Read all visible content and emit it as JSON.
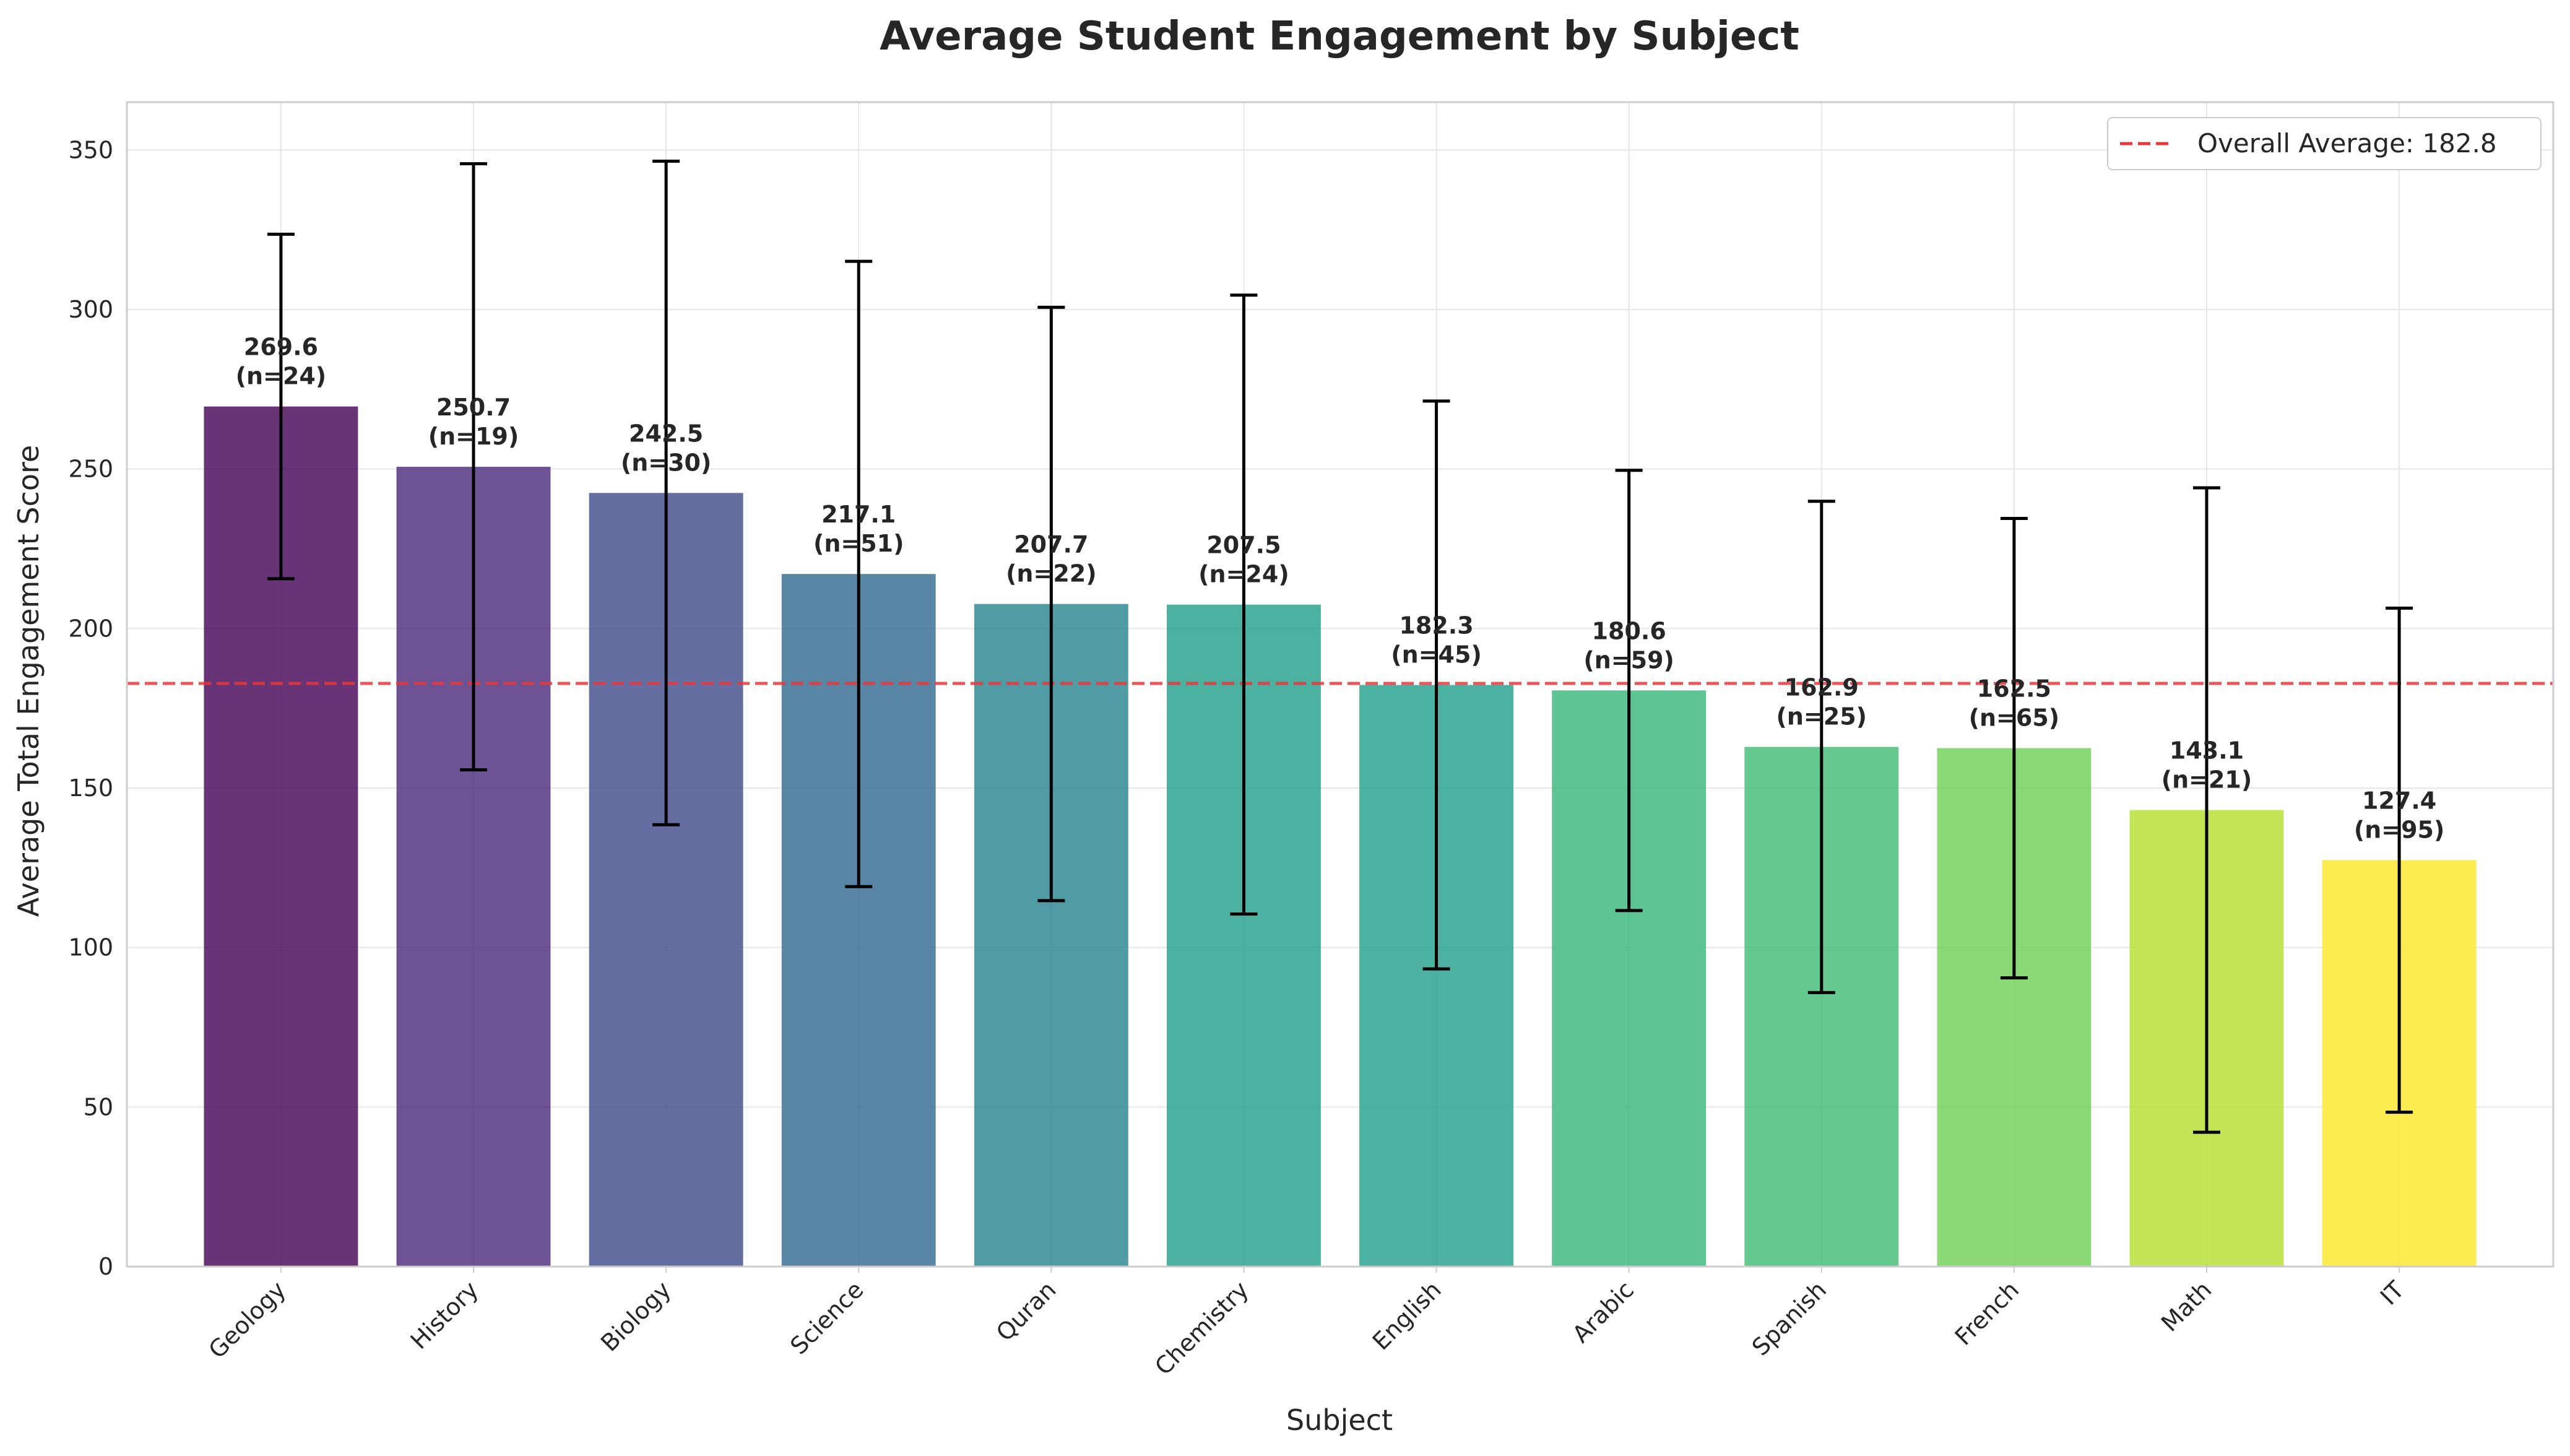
{
  "chart_data": {
    "type": "bar",
    "title": "Average Student Engagement by Subject",
    "xlabel": "Subject",
    "ylabel": "Average Total Engagement Score",
    "ylim": [
      0,
      365
    ],
    "yticks": [
      0,
      50,
      100,
      150,
      200,
      250,
      300,
      350
    ],
    "grid": true,
    "legend_position": "top-right",
    "categories": [
      "Geology",
      "History",
      "Biology",
      "Science",
      "Quran",
      "Chemistry",
      "English",
      "Arabic",
      "Spanish",
      "French",
      "Math",
      "IT"
    ],
    "values": [
      269.6,
      250.7,
      242.5,
      217.1,
      207.7,
      207.5,
      182.3,
      180.6,
      162.9,
      162.5,
      143.1,
      127.4
    ],
    "errors": [
      54,
      95,
      104,
      98,
      93,
      97,
      89,
      69,
      77,
      72,
      101,
      79
    ],
    "counts": [
      24,
      19,
      30,
      51,
      22,
      24,
      45,
      59,
      25,
      65,
      21,
      95
    ],
    "value_labels": [
      "269.6",
      "250.7",
      "242.5",
      "217.1",
      "207.7",
      "207.5",
      "182.3",
      "180.6",
      "162.9",
      "162.5",
      "143.1",
      "127.4"
    ],
    "count_labels": [
      "(n=24)",
      "(n=19)",
      "(n=30)",
      "(n=51)",
      "(n=22)",
      "(n=24)",
      "(n=45)",
      "(n=59)",
      "(n=25)",
      "(n=65)",
      "(n=21)",
      "(n=95)"
    ],
    "bar_colors": [
      "#440154",
      "#482878",
      "#3e4a89",
      "#31688e",
      "#26828e",
      "#1f9e89",
      "#1f9e89",
      "#35b779",
      "#3fbc73",
      "#6ece58",
      "#b5de2b",
      "#fde725"
    ],
    "overall_average": {
      "value": 182.8,
      "label": "Overall Average: 182.8",
      "color": "#e8363b"
    }
  }
}
